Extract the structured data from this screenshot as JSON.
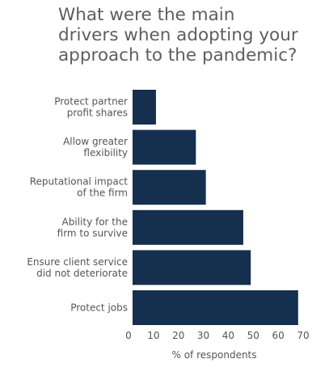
{
  "chart_data": {
    "type": "bar",
    "orientation": "horizontal",
    "title_lines": [
      "What were the main",
      "drivers when adopting your",
      "approach to the pandemic?"
    ],
    "categories": [
      [
        "Protect partner",
        "profit shares"
      ],
      [
        "Allow greater",
        "flexibility"
      ],
      [
        "Reputational impact",
        "of the firm"
      ],
      [
        "Ability for the",
        "firm to survive"
      ],
      [
        "Ensure client service",
        "did not deteriorate"
      ],
      [
        "Protect jobs"
      ]
    ],
    "values": [
      11,
      27,
      31,
      46,
      49,
      68
    ],
    "xlim": [
      0,
      70
    ],
    "xticks": [
      "0",
      "10",
      "20",
      "30",
      "40",
      "50",
      "60",
      "70"
    ],
    "xlabel": "% of respondents",
    "ylabel": "",
    "grid": false,
    "bar_color": "#15304f"
  }
}
